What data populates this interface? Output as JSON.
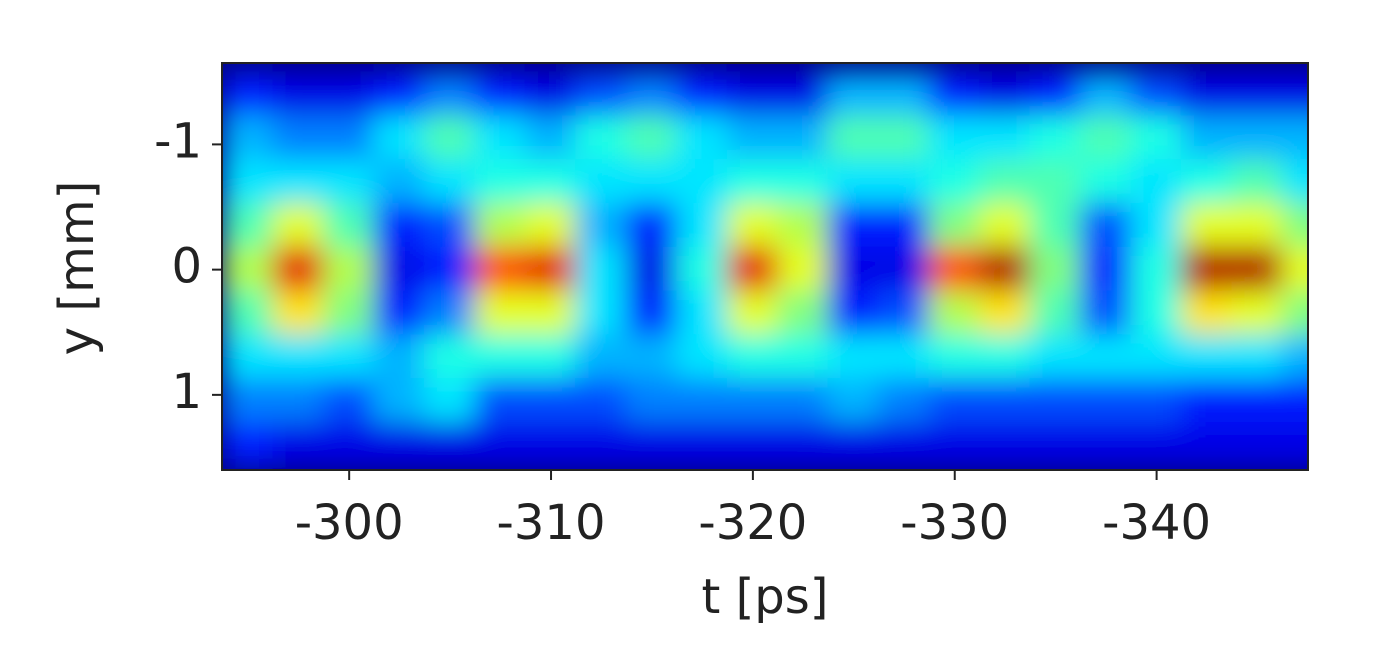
{
  "chart_data": {
    "type": "heatmap",
    "colormap": "jet",
    "zlim": [
      0,
      1
    ],
    "xlabel": "t [ps]",
    "ylabel": "y [mm]",
    "x": [
      -295,
      -297.5,
      -300,
      -302.5,
      -305,
      -307.5,
      -310,
      -312.5,
      -315,
      -317.5,
      -320,
      -322.5,
      -325,
      -327.5,
      -330,
      -332.5,
      -335,
      -337.5,
      -340,
      -342.5,
      -345,
      -347.5
    ],
    "y": [
      -1.4,
      -1.05,
      -0.7,
      -0.35,
      0,
      0.35,
      0.7,
      1.05,
      1.4
    ],
    "z": [
      [
        0.15,
        0.1,
        0.1,
        0.15,
        0.25,
        0.15,
        0.1,
        0.2,
        0.25,
        0.15,
        0.1,
        0.1,
        0.3,
        0.3,
        0.15,
        0.1,
        0.15,
        0.3,
        0.2,
        0.1,
        0.1,
        0.1
      ],
      [
        0.3,
        0.25,
        0.25,
        0.35,
        0.45,
        0.35,
        0.3,
        0.4,
        0.45,
        0.35,
        0.3,
        0.3,
        0.45,
        0.45,
        0.35,
        0.35,
        0.4,
        0.45,
        0.4,
        0.3,
        0.3,
        0.3
      ],
      [
        0.35,
        0.35,
        0.35,
        0.3,
        0.35,
        0.4,
        0.4,
        0.35,
        0.35,
        0.35,
        0.4,
        0.4,
        0.35,
        0.35,
        0.4,
        0.45,
        0.45,
        0.4,
        0.35,
        0.4,
        0.45,
        0.35
      ],
      [
        0.45,
        0.6,
        0.45,
        0.15,
        0.2,
        0.55,
        0.6,
        0.3,
        0.15,
        0.35,
        0.6,
        0.55,
        0.15,
        0.15,
        0.5,
        0.6,
        0.45,
        0.2,
        0.35,
        0.6,
        0.6,
        0.5
      ],
      [
        0.55,
        0.9,
        0.55,
        0.1,
        0.15,
        0.8,
        0.9,
        0.35,
        0.1,
        0.4,
        0.9,
        0.6,
        0.1,
        0.1,
        0.8,
        0.95,
        0.5,
        0.15,
        0.4,
        0.95,
        0.95,
        0.6
      ],
      [
        0.45,
        0.65,
        0.5,
        0.15,
        0.25,
        0.6,
        0.6,
        0.35,
        0.15,
        0.35,
        0.6,
        0.5,
        0.15,
        0.2,
        0.55,
        0.65,
        0.45,
        0.2,
        0.4,
        0.65,
        0.6,
        0.5
      ],
      [
        0.35,
        0.35,
        0.35,
        0.3,
        0.4,
        0.4,
        0.4,
        0.3,
        0.3,
        0.35,
        0.4,
        0.4,
        0.35,
        0.35,
        0.4,
        0.4,
        0.35,
        0.35,
        0.35,
        0.35,
        0.35,
        0.3
      ],
      [
        0.25,
        0.25,
        0.2,
        0.3,
        0.35,
        0.2,
        0.2,
        0.2,
        0.25,
        0.25,
        0.25,
        0.25,
        0.3,
        0.25,
        0.2,
        0.2,
        0.2,
        0.2,
        0.2,
        0.15,
        0.15,
        0.15
      ],
      [
        0.15,
        0.1,
        0.1,
        0.1,
        0.1,
        0.1,
        0.1,
        0.1,
        0.1,
        0.1,
        0.1,
        0.1,
        0.1,
        0.1,
        0.1,
        0.1,
        0.1,
        0.1,
        0.1,
        0.1,
        0.1,
        0.1
      ]
    ],
    "xlim": [
      -293.7,
      -347.5
    ],
    "ylim": [
      -1.65,
      1.6
    ],
    "xticks": [
      -300,
      -310,
      -320,
      -330,
      -340
    ],
    "yticks": [
      -1,
      0,
      1
    ]
  }
}
